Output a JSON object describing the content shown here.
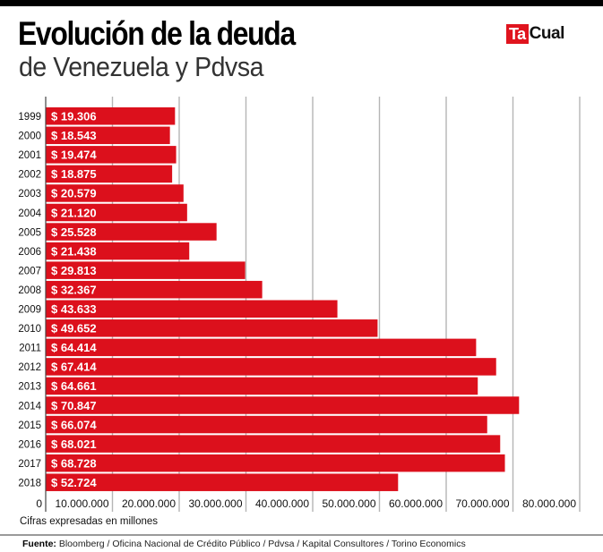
{
  "header": {
    "title": "Evolución de la deuda",
    "subtitle": "de Venezuela y Pdvsa"
  },
  "logo": {
    "part1": "Ta",
    "part2": "Cual",
    "brand_color": "#e0141e"
  },
  "chart_data": {
    "type": "bar",
    "orientation": "horizontal",
    "title": "Evolución de la deuda de Venezuela y Pdvsa",
    "xlabel": "",
    "ylabel": "",
    "categories": [
      "1999",
      "2000",
      "2001",
      "2002",
      "2003",
      "2004",
      "2005",
      "2006",
      "2007",
      "2008",
      "2009",
      "2010",
      "2011",
      "2012",
      "2013",
      "2014",
      "2015",
      "2016",
      "2017",
      "2018"
    ],
    "values": [
      19306,
      18543,
      19474,
      18875,
      20579,
      21120,
      25528,
      21438,
      29813,
      32367,
      43633,
      49652,
      64414,
      67414,
      64661,
      70847,
      66074,
      68021,
      68728,
      52724
    ],
    "value_labels": [
      "$ 19.306",
      "$ 18.543",
      "$ 19.474",
      "$ 18.875",
      "$ 20.579",
      "$ 21.120",
      "$ 25.528",
      "$ 21.438",
      "$ 29.813",
      "$ 32.367",
      "$ 43.633",
      "$ 49.652",
      "$ 64.414",
      "$ 67.414",
      "$ 64.661",
      "$ 70.847",
      "$ 66.074",
      "$ 68.021",
      "$ 68.728",
      "$ 52.724"
    ],
    "x_tick_labels": [
      "0",
      "10.000.000",
      "20.000.000",
      "30.000.000",
      "40.000.000",
      "50.000.000",
      "60.000.000",
      "70.000.000",
      "80.000.000"
    ],
    "xlim": [
      0,
      80000
    ],
    "grid": true,
    "bar_color": "#dc101c",
    "grid_color": "#b5b5b5",
    "units_note": "Cifras expresadas en millones"
  },
  "footer": {
    "source_label": "Fuente:",
    "source_text": " Bloomberg / Oficina Nacional de Crédito Público / Pdvsa / Kapital Consultores / Torino Economics"
  }
}
